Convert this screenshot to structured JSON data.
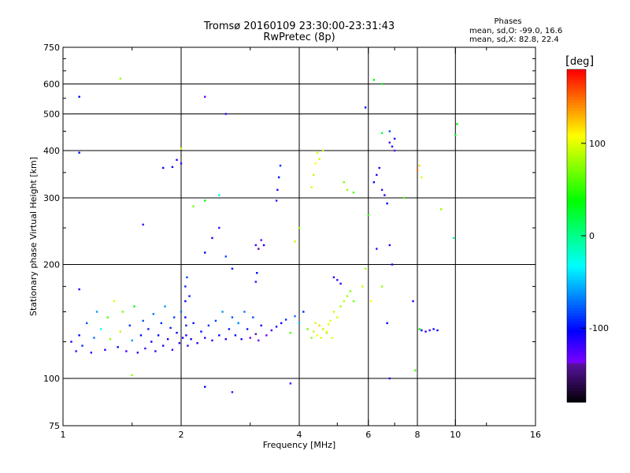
{
  "title": {
    "line1": "Tromsø 20160109 23:30:00-23:31:43",
    "line2": "RwPretec (8p)"
  },
  "stats": {
    "heading": "Phases",
    "line_o": "mean, sd,O: -99.0, 16.6",
    "line_x": "mean, sd,X:  82.8, 22.4"
  },
  "colorbar": {
    "unit": "deg",
    "ticks": [
      {
        "value": 100,
        "label": "100"
      },
      {
        "value": 0,
        "label": "0"
      },
      {
        "value": -100,
        "label": "-100"
      }
    ],
    "range": [
      -180,
      180
    ]
  },
  "chart_data": {
    "type": "scatter",
    "title": "Tromsø 20160109 23:30:00-23:31:43",
    "subtitle": "RwPretec (8p)",
    "xlabel": "Frequency [MHz]",
    "ylabel": "Stationary phase Virtual Height [km]",
    "xscale": "log",
    "yscale": "log",
    "xlim": [
      1,
      16
    ],
    "ylim": [
      75,
      750
    ],
    "xticks": [
      1,
      2,
      4,
      6,
      8,
      10,
      16
    ],
    "xtick_labels": [
      "1",
      "2",
      "4",
      "6",
      "8",
      "10",
      "16"
    ],
    "yticks": [
      75,
      100,
      200,
      300,
      400,
      500,
      600,
      750
    ],
    "ytick_labels": [
      "75",
      "100",
      "200",
      "300",
      "400",
      "500",
      "600",
      "750"
    ],
    "grid_x": [
      2,
      4,
      6,
      8,
      10
    ],
    "grid_y": [
      100,
      200,
      300,
      400,
      500,
      600
    ],
    "color_by": "phase [deg]",
    "points": [
      [
        1.05,
        125,
        -110
      ],
      [
        1.08,
        118,
        -120
      ],
      [
        1.1,
        130,
        -100
      ],
      [
        1.12,
        122,
        -90
      ],
      [
        1.15,
        140,
        -80
      ],
      [
        1.18,
        117,
        -115
      ],
      [
        1.2,
        128,
        -70
      ],
      [
        1.22,
        150,
        -60
      ],
      [
        1.25,
        135,
        -30
      ],
      [
        1.28,
        119,
        -110
      ],
      [
        1.3,
        145,
        60
      ],
      [
        1.32,
        127,
        80
      ],
      [
        1.35,
        160,
        100
      ],
      [
        1.38,
        121,
        -100
      ],
      [
        1.4,
        133,
        90
      ],
      [
        1.42,
        150,
        70
      ],
      [
        1.45,
        118,
        -120
      ],
      [
        1.48,
        138,
        -90
      ],
      [
        1.5,
        126,
        -60
      ],
      [
        1.52,
        155,
        40
      ],
      [
        1.55,
        117,
        -110
      ],
      [
        1.58,
        130,
        -100
      ],
      [
        1.6,
        142,
        -80
      ],
      [
        1.62,
        120,
        -120
      ],
      [
        1.65,
        135,
        -95
      ],
      [
        1.68,
        125,
        -105
      ],
      [
        1.7,
        148,
        -70
      ],
      [
        1.72,
        118,
        -115
      ],
      [
        1.75,
        130,
        -100
      ],
      [
        1.78,
        140,
        -90
      ],
      [
        1.8,
        122,
        -110
      ],
      [
        1.82,
        155,
        -60
      ],
      [
        1.85,
        127,
        -105
      ],
      [
        1.88,
        136,
        -95
      ],
      [
        1.9,
        119,
        -120
      ],
      [
        1.92,
        145,
        -85
      ],
      [
        1.95,
        132,
        -100
      ],
      [
        1.98,
        124,
        -115
      ],
      [
        2.0,
        150,
        -70
      ],
      [
        2.02,
        128,
        -110
      ],
      [
        2.05,
        175,
        -90
      ],
      [
        2.05,
        160,
        -100
      ],
      [
        2.05,
        145,
        -105
      ],
      [
        2.06,
        138,
        -95
      ],
      [
        2.06,
        130,
        -110
      ],
      [
        2.07,
        185,
        -80
      ],
      [
        2.08,
        122,
        -120
      ],
      [
        2.1,
        165,
        -95
      ],
      [
        2.12,
        127,
        -105
      ],
      [
        2.15,
        140,
        -100
      ],
      [
        2.2,
        124,
        -110
      ],
      [
        2.25,
        133,
        -100
      ],
      [
        2.3,
        128,
        -115
      ],
      [
        2.35,
        138,
        -90
      ],
      [
        2.4,
        126,
        -110
      ],
      [
        2.45,
        142,
        -85
      ],
      [
        2.5,
        130,
        -100
      ],
      [
        2.55,
        150,
        -60
      ],
      [
        2.6,
        127,
        -110
      ],
      [
        2.65,
        135,
        -95
      ],
      [
        2.7,
        145,
        -80
      ],
      [
        2.75,
        130,
        -100
      ],
      [
        2.8,
        140,
        -85
      ],
      [
        2.85,
        127,
        -110
      ],
      [
        2.9,
        150,
        -70
      ],
      [
        2.95,
        135,
        -95
      ],
      [
        3.0,
        128,
        -130
      ],
      [
        3.05,
        145,
        -80
      ],
      [
        3.1,
        131,
        -140
      ],
      [
        3.15,
        126,
        -130
      ],
      [
        3.2,
        138,
        -100
      ],
      [
        3.3,
        130,
        -135
      ],
      [
        3.4,
        134,
        -120
      ],
      [
        3.5,
        137,
        -110
      ],
      [
        3.6,
        140,
        -100
      ],
      [
        3.7,
        143,
        -90
      ],
      [
        3.8,
        132,
        60
      ],
      [
        3.9,
        146,
        -70
      ],
      [
        4.0,
        140,
        -50
      ],
      [
        4.1,
        150,
        -90
      ],
      [
        4.2,
        135,
        70
      ],
      [
        4.3,
        128,
        80
      ],
      [
        4.35,
        133,
        90
      ],
      [
        4.4,
        140,
        100
      ],
      [
        4.45,
        130,
        110
      ],
      [
        4.5,
        138,
        120
      ],
      [
        4.55,
        128,
        100
      ],
      [
        4.6,
        135,
        90
      ],
      [
        4.7,
        132,
        80
      ],
      [
        4.8,
        142,
        100
      ],
      [
        4.9,
        150,
        95
      ],
      [
        5.0,
        145,
        100
      ],
      [
        5.1,
        155,
        85
      ],
      [
        5.2,
        160,
        90
      ],
      [
        5.3,
        165,
        80
      ],
      [
        5.4,
        170,
        75
      ],
      [
        5.5,
        160,
        70
      ],
      [
        4.9,
        185,
        -110
      ],
      [
        5.0,
        182,
        -120
      ],
      [
        5.1,
        178,
        -115
      ],
      [
        1.9,
        362,
        -100
      ],
      [
        1.95,
        378,
        -110
      ],
      [
        2.0,
        370,
        -120
      ],
      [
        2.3,
        215,
        -100
      ],
      [
        2.4,
        235,
        -110
      ],
      [
        2.5,
        250,
        -120
      ],
      [
        2.6,
        210,
        -80
      ],
      [
        2.7,
        195,
        -100
      ],
      [
        3.1,
        225,
        -120
      ],
      [
        3.15,
        220,
        -140
      ],
      [
        3.2,
        232,
        -130
      ],
      [
        3.25,
        225,
        -110
      ],
      [
        3.1,
        180,
        -120
      ],
      [
        3.12,
        190,
        -100
      ],
      [
        3.5,
        295,
        -120
      ],
      [
        3.52,
        315,
        -110
      ],
      [
        3.55,
        340,
        -100
      ],
      [
        3.58,
        365,
        -90
      ],
      [
        4.3,
        320,
        100
      ],
      [
        4.35,
        345,
        90
      ],
      [
        4.4,
        370,
        110
      ],
      [
        4.45,
        395,
        100
      ],
      [
        4.5,
        380,
        95
      ],
      [
        4.6,
        400,
        90
      ],
      [
        5.2,
        330,
        70
      ],
      [
        5.3,
        315,
        80
      ],
      [
        5.5,
        310,
        60
      ],
      [
        6.0,
        270,
        50
      ],
      [
        6.2,
        330,
        -100
      ],
      [
        6.3,
        345,
        -110
      ],
      [
        6.4,
        360,
        -100
      ],
      [
        6.5,
        315,
        -120
      ],
      [
        6.6,
        305,
        -110
      ],
      [
        6.7,
        290,
        -100
      ],
      [
        6.8,
        420,
        -120
      ],
      [
        6.9,
        410,
        -110
      ],
      [
        7.0,
        400,
        -130
      ],
      [
        6.5,
        445,
        20
      ],
      [
        6.8,
        450,
        -80
      ],
      [
        7.0,
        430,
        -100
      ],
      [
        6.5,
        600,
        30
      ],
      [
        6.2,
        615,
        40
      ],
      [
        5.9,
        520,
        -100
      ],
      [
        1.1,
        555,
        -100
      ],
      [
        1.1,
        395,
        -100
      ],
      [
        1.4,
        620,
        80
      ],
      [
        2.3,
        555,
        -130
      ],
      [
        2.6,
        500,
        -120
      ],
      [
        2.5,
        305,
        -20
      ],
      [
        2.3,
        295,
        40
      ],
      [
        1.8,
        360,
        -100
      ],
      [
        1.6,
        255,
        -120
      ],
      [
        1.1,
        172,
        -110
      ],
      [
        2.0,
        405,
        100
      ],
      [
        2.15,
        285,
        70
      ],
      [
        2.8,
        140,
        -60
      ],
      [
        4.0,
        250,
        80
      ],
      [
        3.9,
        230,
        95
      ],
      [
        5.8,
        175,
        95
      ],
      [
        6.1,
        160,
        110
      ],
      [
        6.9,
        200,
        -110
      ],
      [
        6.5,
        175,
        80
      ],
      [
        7.4,
        300,
        60
      ],
      [
        8.0,
        355,
        150
      ],
      [
        8.1,
        365,
        120
      ],
      [
        8.2,
        340,
        100
      ],
      [
        9.2,
        280,
        80
      ],
      [
        9.9,
        235,
        0
      ],
      [
        10.1,
        470,
        40
      ],
      [
        10.0,
        440,
        30
      ],
      [
        8.1,
        135,
        40
      ],
      [
        8.2,
        134,
        -100
      ],
      [
        8.4,
        133,
        -110
      ],
      [
        8.6,
        134,
        -120
      ],
      [
        8.8,
        135,
        -110
      ],
      [
        9.0,
        134,
        -100
      ],
      [
        7.8,
        160,
        -110
      ],
      [
        7.9,
        105,
        60
      ],
      [
        6.8,
        100,
        -110
      ],
      [
        3.8,
        97,
        -120
      ],
      [
        2.3,
        95,
        -100
      ],
      [
        2.7,
        92,
        -120
      ],
      [
        1.5,
        102,
        80
      ],
      [
        6.7,
        140,
        -100
      ],
      [
        6.3,
        220,
        -120
      ],
      [
        6.8,
        225,
        -110
      ],
      [
        5.9,
        195,
        80
      ],
      [
        4.7,
        133,
        110
      ],
      [
        4.75,
        139,
        105
      ],
      [
        4.85,
        128,
        100
      ]
    ]
  }
}
